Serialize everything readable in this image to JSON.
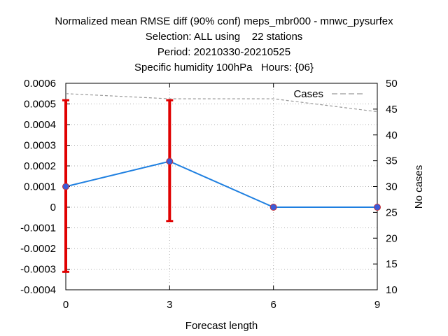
{
  "chart_data": {
    "type": "line",
    "title_lines": [
      "Normalized mean RMSE diff (90% conf) meps_mbr000 - mnwc_pysurfex",
      "Selection: ALL using    22 stations",
      "Period: 20210330-20210525",
      "Specific humidity 100hPa   Hours: {06}"
    ],
    "xlabel": "Forecast length",
    "ylabel": "",
    "y2label": "No cases",
    "x": [
      0,
      3,
      6,
      9
    ],
    "xlim": [
      0,
      9
    ],
    "ylim": [
      -0.0004,
      0.0006
    ],
    "y2lim": [
      10,
      50
    ],
    "x_ticks": [
      "0",
      "3",
      "6",
      "9"
    ],
    "y_ticks": [
      "0.0006",
      "0.0005",
      "0.0004",
      "0.0003",
      "0.0002",
      "0.0001",
      "0",
      "-0.0001",
      "-0.0002",
      "-0.0003",
      "-0.0004"
    ],
    "y2_ticks": [
      "50",
      "45",
      "40",
      "35",
      "30",
      "25",
      "20",
      "15",
      "10"
    ],
    "grid": true,
    "legend_position": "top-right",
    "series": [
      {
        "values": [
          0.0001,
          0.000222,
          0.0,
          0.0
        ],
        "error_low": [
          -0.000313,
          -6.7e-05,
          null,
          null
        ],
        "error_high": [
          0.000518,
          0.000518,
          null,
          null
        ],
        "line_color": "#1e7fe0",
        "marker_color": "#3a5bd9",
        "error_color": "#e00000",
        "axis": "left"
      },
      {
        "name": "Cases",
        "values": [
          48,
          47,
          47,
          44.5
        ],
        "color": "#999999",
        "style": "dashed",
        "axis": "right"
      }
    ]
  }
}
